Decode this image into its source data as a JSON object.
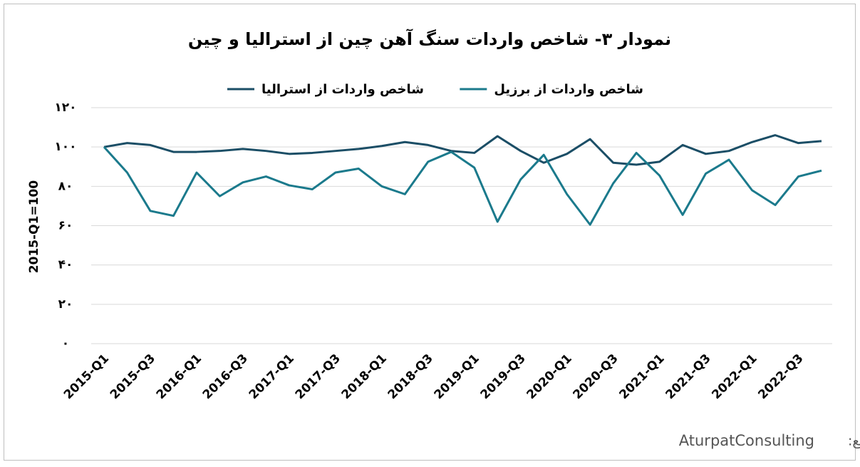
{
  "chart_data": {
    "type": "line",
    "title": "نمودار ۳- شاخص واردات سنگ آهن چین از استرالیا و چین",
    "y_label": "2015-Q1=100",
    "source_label": "منبع:",
    "source": "AturpatConsulting",
    "categories": [
      "2015-Q1",
      null,
      "2015-Q3",
      null,
      "2016-Q1",
      null,
      "2016-Q3",
      null,
      "2017-Q1",
      null,
      "2017-Q3",
      null,
      "2018-Q1",
      null,
      "2018-Q3",
      null,
      "2019-Q1",
      null,
      "2019-Q3",
      null,
      "2020-Q1",
      null,
      "2020-Q3",
      null,
      "2021-Q1",
      null,
      "2021-Q3",
      null,
      "2022-Q1",
      null,
      "2022-Q3",
      null
    ],
    "series": [
      {
        "name": "شاخص واردات از استرالیا",
        "color": "#1b4e66",
        "values": [
          100,
          102,
          101,
          97.5,
          97.5,
          98,
          99,
          98,
          96.5,
          97,
          98,
          99,
          100.5,
          102.5,
          101,
          98,
          97,
          105.5,
          98,
          92,
          96.5,
          104,
          92,
          91,
          92.5,
          101,
          96.5,
          98,
          102.5,
          106,
          102,
          103
        ]
      },
      {
        "name": "شاخص واردات از برزیل",
        "color": "#1b7a8c",
        "values": [
          100,
          87,
          67.5,
          65,
          87,
          75,
          82,
          85,
          80.5,
          78.5,
          87,
          89,
          80,
          76,
          92.5,
          97.5,
          89.5,
          62,
          83.5,
          96,
          76,
          60.5,
          81.5,
          97,
          85.5,
          65.5,
          86.5,
          93.5,
          78,
          70.5,
          85,
          88
        ]
      }
    ],
    "ylim": [
      0,
      120
    ],
    "yticks": [
      {
        "value": 0,
        "label": "۰"
      },
      {
        "value": 20,
        "label": "۲۰"
      },
      {
        "value": 40,
        "label": "۴۰"
      },
      {
        "value": 60,
        "label": "۶۰"
      },
      {
        "value": 80,
        "label": "۸۰"
      },
      {
        "value": 100,
        "label": "۱۰۰"
      },
      {
        "value": 120,
        "label": "۱۲۰"
      }
    ],
    "grid": true,
    "legend": "top"
  }
}
